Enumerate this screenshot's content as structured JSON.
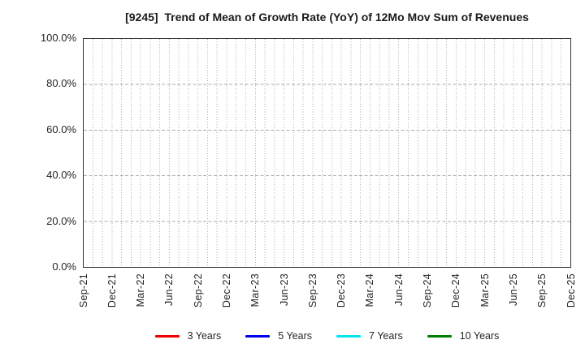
{
  "chart_data": {
    "type": "line",
    "title": "[9245]  Trend of Mean of Growth Rate (YoY) of 12Mo Mov Sum of Revenues",
    "xlabel": "",
    "ylabel": "",
    "ylim": [
      0,
      100
    ],
    "y_tick_labels": [
      "0.0%",
      "20.0%",
      "40.0%",
      "60.0%",
      "80.0%",
      "100.0%"
    ],
    "x_tick_labels": [
      "Sep-21",
      "Dec-21",
      "Mar-22",
      "Jun-22",
      "Sep-22",
      "Dec-22",
      "Mar-23",
      "Jun-23",
      "Sep-23",
      "Dec-23",
      "Mar-24",
      "Jun-24",
      "Sep-24",
      "Dec-24",
      "Mar-25",
      "Jun-25",
      "Sep-25",
      "Dec-25"
    ],
    "x_axis_monthly_points": 52,
    "months_per_tick": 3,
    "grid": true,
    "legend_position": "bottom-center",
    "series": [
      {
        "name": "3 Years",
        "color": "#ee0000",
        "values": []
      },
      {
        "name": "5 Years",
        "color": "#0000ee",
        "values": []
      },
      {
        "name": "7 Years",
        "color": "#00e5ee",
        "values": []
      },
      {
        "name": "10 Years",
        "color": "#008000",
        "values": []
      }
    ],
    "colors": {
      "grid": "#ababab",
      "spine": "#333333",
      "tick_text": "#262626",
      "title_text": "#1a1a1a",
      "background": "#ffffff"
    }
  }
}
